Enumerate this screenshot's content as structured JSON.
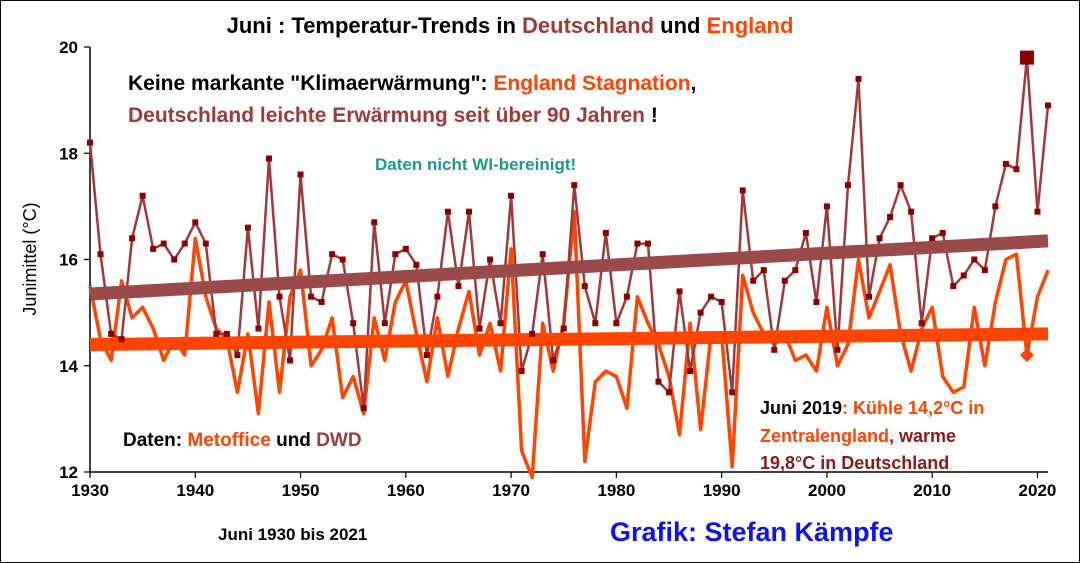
{
  "title": {
    "prefix": "Juni : Temperatur-Trends in ",
    "de": "Deutschland",
    "mid": " und ",
    "en": "England"
  },
  "annotations": {
    "headline_prefix": "Keine markante \"Klimaerwärmung\": ",
    "headline_england": "England Stagnation",
    "headline_comma": ",",
    "headline_de": "Deutschland leichte Erwärmung seit über 90 Jahren",
    "headline_bang": " !",
    "wi_note": "Daten nicht WI-bereinigt!",
    "source_prefix": "Daten: ",
    "source_metoffice": "Metoffice",
    "source_and": " und ",
    "source_dwd": "DWD",
    "june2019_prefix": "Juni 2019",
    "june2019_part1": ": Kühle 14,2°C in",
    "june2019_part2": "Zentralengland",
    "june2019_part3": ", warme",
    "june2019_part4": "19,8°C in Deutschland",
    "period": "Juni 1930 bis 2021",
    "credit": "Grafik: Stefan Kämpfe"
  },
  "colors": {
    "deutschland": "#9E3A3C",
    "deutschland_marker": "#8B0000",
    "england": "#FF4500",
    "trend_de": "#9A4A4A",
    "trend_en": "#FF4500",
    "wi_note": "#1A9A8A",
    "credit": "#1010F0"
  },
  "chart_data": {
    "type": "line",
    "ylabel": "Junimittel (°C)",
    "xlabel": "",
    "xlim": [
      1930,
      2021
    ],
    "ylim": [
      12,
      20
    ],
    "xticks": [
      1930,
      1940,
      1950,
      1960,
      1970,
      1980,
      1990,
      2000,
      2010,
      2020
    ],
    "yticks": [
      12,
      14,
      16,
      18,
      20
    ],
    "grid": false,
    "x": [
      1930,
      1931,
      1932,
      1933,
      1934,
      1935,
      1936,
      1937,
      1938,
      1939,
      1940,
      1941,
      1942,
      1943,
      1944,
      1945,
      1946,
      1947,
      1948,
      1949,
      1950,
      1951,
      1952,
      1953,
      1954,
      1955,
      1956,
      1957,
      1958,
      1959,
      1960,
      1961,
      1962,
      1963,
      1964,
      1965,
      1966,
      1967,
      1968,
      1969,
      1970,
      1971,
      1972,
      1973,
      1974,
      1975,
      1976,
      1977,
      1978,
      1979,
      1980,
      1981,
      1982,
      1983,
      1984,
      1985,
      1986,
      1987,
      1988,
      1989,
      1990,
      1991,
      1992,
      1993,
      1994,
      1995,
      1996,
      1997,
      1998,
      1999,
      2000,
      2001,
      2002,
      2003,
      2004,
      2005,
      2006,
      2007,
      2008,
      2009,
      2010,
      2011,
      2012,
      2013,
      2014,
      2015,
      2016,
      2017,
      2018,
      2019,
      2020,
      2021
    ],
    "series": [
      {
        "name": "Deutschland",
        "values": [
          18.2,
          16.1,
          14.6,
          14.5,
          16.4,
          17.2,
          16.2,
          16.3,
          16.0,
          16.3,
          16.7,
          16.3,
          14.6,
          14.6,
          14.2,
          16.6,
          14.7,
          17.9,
          15.3,
          14.1,
          17.6,
          15.3,
          15.2,
          16.1,
          16.0,
          14.8,
          13.2,
          16.7,
          14.8,
          16.1,
          16.2,
          15.9,
          14.2,
          15.3,
          16.9,
          15.5,
          16.9,
          14.7,
          16.0,
          14.8,
          17.2,
          13.9,
          14.6,
          16.1,
          14.1,
          14.7,
          17.4,
          15.5,
          14.8,
          16.5,
          14.8,
          15.3,
          16.3,
          16.3,
          13.7,
          13.5,
          15.4,
          13.9,
          15.0,
          15.3,
          15.2,
          13.5,
          17.3,
          15.6,
          15.8,
          14.3,
          15.6,
          15.8,
          16.5,
          15.2,
          17.0,
          14.3,
          17.4,
          19.4,
          15.3,
          16.4,
          16.8,
          17.4,
          16.9,
          14.8,
          16.4,
          16.5,
          15.5,
          15.7,
          16.0,
          15.8,
          17.0,
          17.8,
          17.7,
          19.8,
          16.9,
          18.9
        ]
      },
      {
        "name": "England",
        "values": [
          15.5,
          14.5,
          14.1,
          15.6,
          14.9,
          15.1,
          14.7,
          14.1,
          14.5,
          14.2,
          16.4,
          15.3,
          14.7,
          14.5,
          13.5,
          14.6,
          13.1,
          15.2,
          13.5,
          15.3,
          15.8,
          14.0,
          14.3,
          14.9,
          13.4,
          13.8,
          13.1,
          14.9,
          14.1,
          15.2,
          15.6,
          14.6,
          13.7,
          14.9,
          13.8,
          14.7,
          15.4,
          14.2,
          14.8,
          13.9,
          16.2,
          12.4,
          11.9,
          14.8,
          13.9,
          14.8,
          16.9,
          12.2,
          13.7,
          13.9,
          13.8,
          13.2,
          15.3,
          14.8,
          14.4,
          13.8,
          12.7,
          14.8,
          12.8,
          14.6,
          14.6,
          12.1,
          15.7,
          15.0,
          14.6,
          14.4,
          14.6,
          14.1,
          14.2,
          13.9,
          15.1,
          14.0,
          14.4,
          16.0,
          14.9,
          15.4,
          15.9,
          14.6,
          13.9,
          14.7,
          15.1,
          13.8,
          13.5,
          13.6,
          15.1,
          14.0,
          15.2,
          16.0,
          16.1,
          14.2,
          15.3,
          15.8
        ]
      }
    ],
    "trends": [
      {
        "series": "Deutschland",
        "start": [
          1930,
          15.35
        ],
        "end": [
          2021,
          16.35
        ]
      },
      {
        "series": "England",
        "start": [
          1930,
          14.4
        ],
        "end": [
          2021,
          14.6
        ]
      }
    ],
    "highlight_2019": {
      "Deutschland": 19.8,
      "England": 14.2
    }
  }
}
